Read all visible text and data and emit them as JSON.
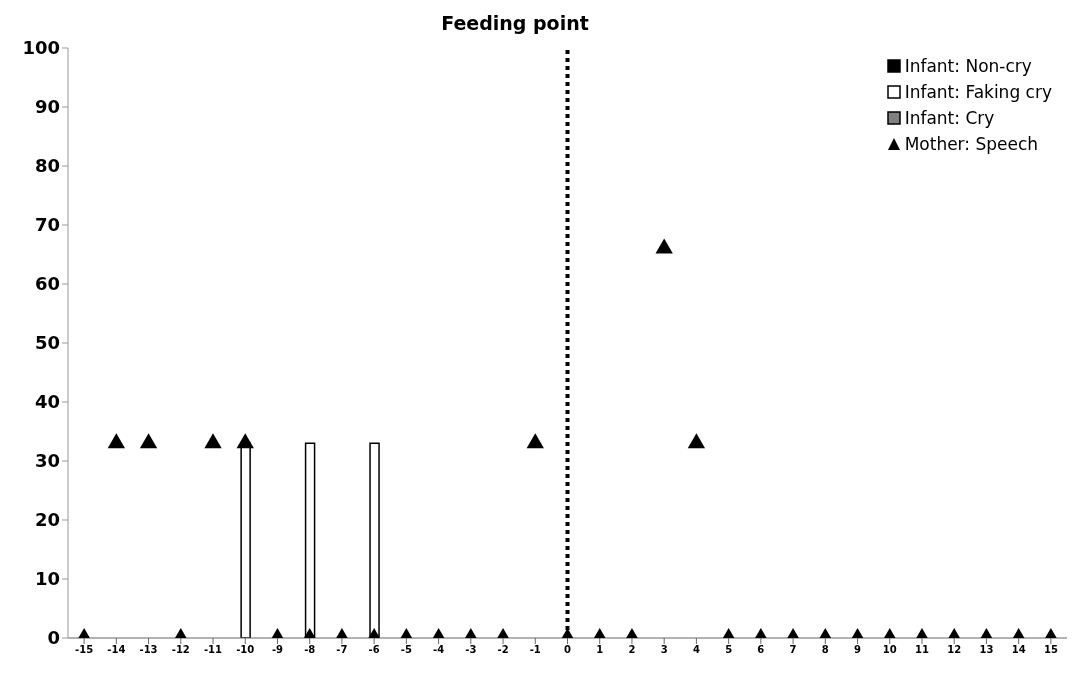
{
  "chart_data": {
    "type": "bar",
    "title": "Feeding point",
    "x": [
      -15,
      -14,
      -13,
      -12,
      -11,
      -10,
      -9,
      -8,
      -7,
      -6,
      -5,
      -4,
      -3,
      -2,
      -1,
      0,
      1,
      2,
      3,
      4,
      5,
      6,
      7,
      8,
      9,
      10,
      11,
      12,
      13,
      14,
      15
    ],
    "xlim": [
      -15.5,
      15.5
    ],
    "xticks": [
      -15,
      -14,
      -13,
      -12,
      -11,
      -10,
      -9,
      -8,
      -7,
      -6,
      -5,
      -4,
      -3,
      -2,
      -1,
      0,
      1,
      2,
      3,
      4,
      5,
      6,
      7,
      8,
      9,
      10,
      11,
      12,
      13,
      14,
      15
    ],
    "ylim": [
      0,
      100
    ],
    "yticks": [
      0,
      10,
      20,
      30,
      40,
      50,
      60,
      70,
      80,
      90,
      100
    ],
    "series": [
      {
        "name": "Infant: Non-cry",
        "color": "#000000",
        "values": [
          0,
          0,
          0,
          0,
          0,
          0,
          0,
          0,
          0,
          0,
          0,
          0,
          0,
          0,
          0,
          0,
          0,
          0,
          0,
          0,
          0,
          0,
          0,
          0,
          0,
          0,
          0,
          0,
          0,
          0,
          0
        ]
      },
      {
        "name": "Infant: Faking cry",
        "color": "#ffffff",
        "values": [
          0,
          0,
          0,
          0,
          0,
          33,
          0,
          33,
          0,
          33,
          0,
          0,
          0,
          0,
          0,
          0,
          0,
          0,
          0,
          0,
          0,
          0,
          0,
          0,
          0,
          0,
          0,
          0,
          0,
          0,
          0
        ]
      },
      {
        "name": "Infant: Cry",
        "color": "#808080",
        "values": [
          0,
          0,
          0,
          0,
          0,
          0,
          0,
          0,
          0,
          0,
          0,
          0,
          0,
          0,
          0,
          0,
          0,
          0,
          0,
          0,
          0,
          0,
          0,
          0,
          0,
          0,
          0,
          0,
          0,
          0,
          0
        ]
      },
      {
        "name": "Mother: Speech",
        "type": "scatter",
        "marker": "triangle",
        "color": "#000000",
        "values": [
          0,
          33,
          33,
          0,
          33,
          33,
          0,
          0,
          0,
          0,
          0,
          0,
          0,
          0,
          33,
          0,
          0,
          0,
          66,
          33,
          0,
          0,
          0,
          0,
          0,
          0,
          0,
          0,
          0,
          0,
          0
        ]
      }
    ],
    "ref_lines": [
      {
        "axis": "x",
        "value": 0,
        "color": "#000000",
        "line_style": "dotted"
      }
    ],
    "legend": "top right"
  }
}
